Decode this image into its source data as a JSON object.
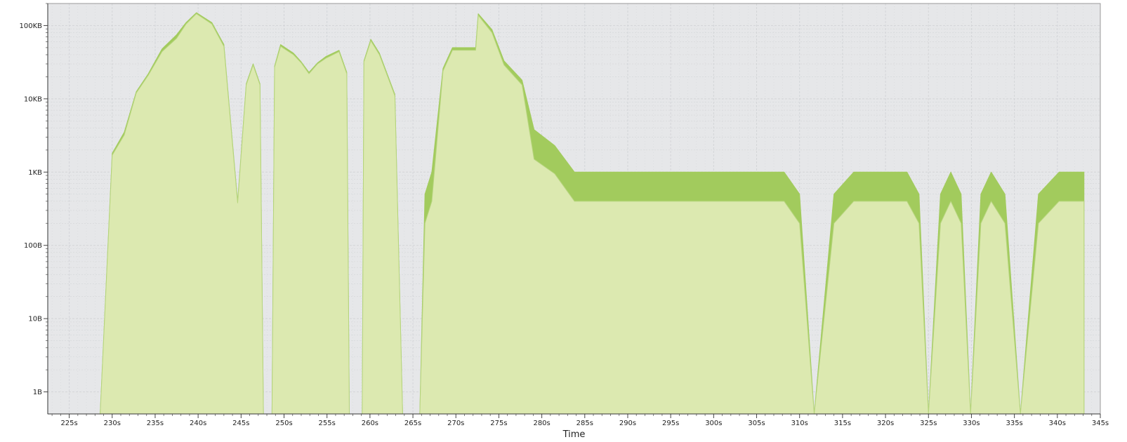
{
  "chart_data": {
    "type": "area",
    "title": "",
    "xlabel": "Time",
    "ylabel": "",
    "yscale": "log",
    "grid": true,
    "legend": "none",
    "xlim": [
      222.5,
      345
    ],
    "ylim": [
      0.5,
      200000
    ],
    "xticks": [
      225,
      230,
      235,
      240,
      245,
      250,
      255,
      260,
      265,
      270,
      275,
      280,
      285,
      290,
      295,
      300,
      305,
      310,
      315,
      320,
      325,
      330,
      335,
      340,
      345
    ],
    "xtick_labels": [
      "225s",
      "230s",
      "235s",
      "240s",
      "245s",
      "250s",
      "255s",
      "260s",
      "265s",
      "270s",
      "275s",
      "280s",
      "285s",
      "290s",
      "295s",
      "300s",
      "305s",
      "310s",
      "315s",
      "320s",
      "325s",
      "330s",
      "335s",
      "340s",
      "345s"
    ],
    "yticks": [
      1,
      10,
      100,
      1000,
      10000,
      100000
    ],
    "ytick_labels": [
      "1B",
      "10B",
      "100B",
      "1KB",
      "10KB",
      "100KB"
    ],
    "colors": {
      "plot_background": "#e6e7e9",
      "grid": "#d3d5d8",
      "outer_area": "#a2cb5d",
      "inner_area": "#dce9b0",
      "inner_line": "#b7d57e",
      "frame": "#9a9a9a"
    },
    "series": [
      {
        "values": [
          [
            228.6,
            0.5
          ],
          [
            230.0,
            1800
          ],
          [
            231.4,
            3500
          ],
          [
            232.8,
            12500
          ],
          [
            234.2,
            22000
          ],
          [
            235.8,
            48000
          ],
          [
            237.5,
            75000
          ],
          [
            238.6,
            110000
          ],
          [
            239.8,
            150000
          ],
          [
            241.6,
            110000
          ],
          [
            243.0,
            55000
          ],
          [
            244.6,
            400
          ],
          [
            245.6,
            16000
          ],
          [
            246.4,
            30000
          ],
          [
            247.2,
            16000
          ],
          [
            247.6,
            0.5
          ],
          [
            248.6,
            0.5
          ],
          [
            248.9,
            28000
          ],
          [
            249.6,
            55000
          ],
          [
            251.1,
            42000
          ],
          [
            252.0,
            32000
          ],
          [
            252.9,
            23000
          ],
          [
            253.9,
            31000
          ],
          [
            254.9,
            38000
          ],
          [
            256.4,
            46000
          ],
          [
            257.3,
            23000
          ],
          [
            257.6,
            0.5
          ],
          [
            259.1,
            0.5
          ],
          [
            259.3,
            33000
          ],
          [
            260.1,
            65000
          ],
          [
            261.1,
            42000
          ],
          [
            262.9,
            11500
          ],
          [
            263.8,
            0.5
          ],
          [
            265.8,
            0.5
          ],
          [
            266.4,
            500
          ],
          [
            267.2,
            1000
          ],
          [
            268.5,
            26000
          ],
          [
            269.6,
            50000
          ],
          [
            272.3,
            50000
          ],
          [
            272.6,
            145000
          ],
          [
            274.2,
            88000
          ],
          [
            275.6,
            33000
          ],
          [
            277.7,
            18000
          ],
          [
            279.1,
            3800
          ],
          [
            281.5,
            2300
          ],
          [
            283.8,
            1000
          ],
          [
            308.2,
            1000
          ],
          [
            310.0,
            500
          ],
          [
            311.7,
            0.5
          ],
          [
            314.0,
            500
          ],
          [
            316.3,
            1000
          ],
          [
            322.5,
            1000
          ],
          [
            323.9,
            500
          ],
          [
            325.0,
            0.5
          ],
          [
            326.4,
            500
          ],
          [
            327.6,
            1000
          ],
          [
            328.8,
            500
          ],
          [
            329.9,
            0.5
          ],
          [
            331.1,
            500
          ],
          [
            332.3,
            1000
          ],
          [
            333.9,
            500
          ],
          [
            335.7,
            0.5
          ],
          [
            337.8,
            500
          ],
          [
            340.2,
            1000
          ],
          [
            343.1,
            1000
          ],
          [
            343.1,
            0.5
          ]
        ]
      },
      {
        "values": [
          [
            228.6,
            0.5
          ],
          [
            230.0,
            1700
          ],
          [
            231.4,
            3200
          ],
          [
            232.8,
            12000
          ],
          [
            234.2,
            21000
          ],
          [
            235.8,
            44000
          ],
          [
            237.5,
            67000
          ],
          [
            238.6,
            105000
          ],
          [
            239.8,
            145000
          ],
          [
            241.6,
            105000
          ],
          [
            243.0,
            52000
          ],
          [
            244.6,
            380
          ],
          [
            245.6,
            15500
          ],
          [
            246.4,
            29000
          ],
          [
            247.2,
            15500
          ],
          [
            247.6,
            0.5
          ],
          [
            248.6,
            0.5
          ],
          [
            248.9,
            27000
          ],
          [
            249.6,
            52000
          ],
          [
            251.1,
            40000
          ],
          [
            252.0,
            31000
          ],
          [
            252.9,
            22000
          ],
          [
            253.9,
            30000
          ],
          [
            254.9,
            36000
          ],
          [
            256.4,
            44000
          ],
          [
            257.3,
            22000
          ],
          [
            257.6,
            0.5
          ],
          [
            259.1,
            0.5
          ],
          [
            259.3,
            32000
          ],
          [
            260.1,
            62000
          ],
          [
            261.1,
            40000
          ],
          [
            262.9,
            11000
          ],
          [
            263.8,
            0.5
          ],
          [
            265.8,
            0.5
          ],
          [
            266.4,
            200
          ],
          [
            267.2,
            400
          ],
          [
            268.5,
            24000
          ],
          [
            269.6,
            46000
          ],
          [
            272.3,
            46000
          ],
          [
            272.6,
            138000
          ],
          [
            274.2,
            80000
          ],
          [
            275.6,
            29000
          ],
          [
            277.7,
            15500
          ],
          [
            279.1,
            1500
          ],
          [
            281.5,
            950
          ],
          [
            283.8,
            400
          ],
          [
            308.2,
            400
          ],
          [
            310.0,
            200
          ],
          [
            311.7,
            0.5
          ],
          [
            314.0,
            200
          ],
          [
            316.3,
            400
          ],
          [
            322.5,
            400
          ],
          [
            323.9,
            200
          ],
          [
            325.0,
            0.5
          ],
          [
            326.4,
            200
          ],
          [
            327.6,
            400
          ],
          [
            328.8,
            200
          ],
          [
            329.9,
            0.5
          ],
          [
            331.1,
            200
          ],
          [
            332.3,
            400
          ],
          [
            333.9,
            200
          ],
          [
            335.7,
            0.5
          ],
          [
            337.8,
            200
          ],
          [
            340.2,
            400
          ],
          [
            343.1,
            400
          ],
          [
            343.1,
            0.5
          ]
        ]
      }
    ]
  }
}
